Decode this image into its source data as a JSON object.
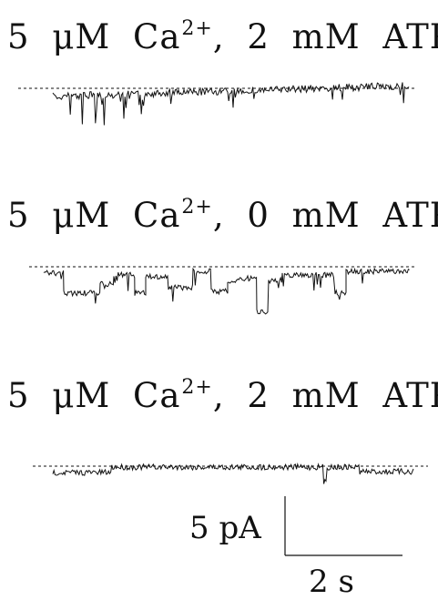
{
  "conditions": [
    {
      "number": "5",
      "unit": "μM",
      "ion": "Ca",
      "charge": "2+",
      "separator": ",",
      "atp_value": "2",
      "atp_unit": "mM",
      "atp_label": "ATP"
    },
    {
      "number": "5",
      "unit": "μM",
      "ion": "Ca",
      "charge": "2+",
      "separator": ",",
      "atp_value": "0",
      "atp_unit": "mM",
      "atp_label": "ATP"
    },
    {
      "number": "5",
      "unit": "μM",
      "ion": "Ca",
      "charge": "2+",
      "separator": ",",
      "atp_value": "2",
      "atp_unit": "mM",
      "atp_label": "ATP"
    }
  ],
  "scale_bar": {
    "current_label": "5 pA",
    "time_label": "2 s"
  }
}
